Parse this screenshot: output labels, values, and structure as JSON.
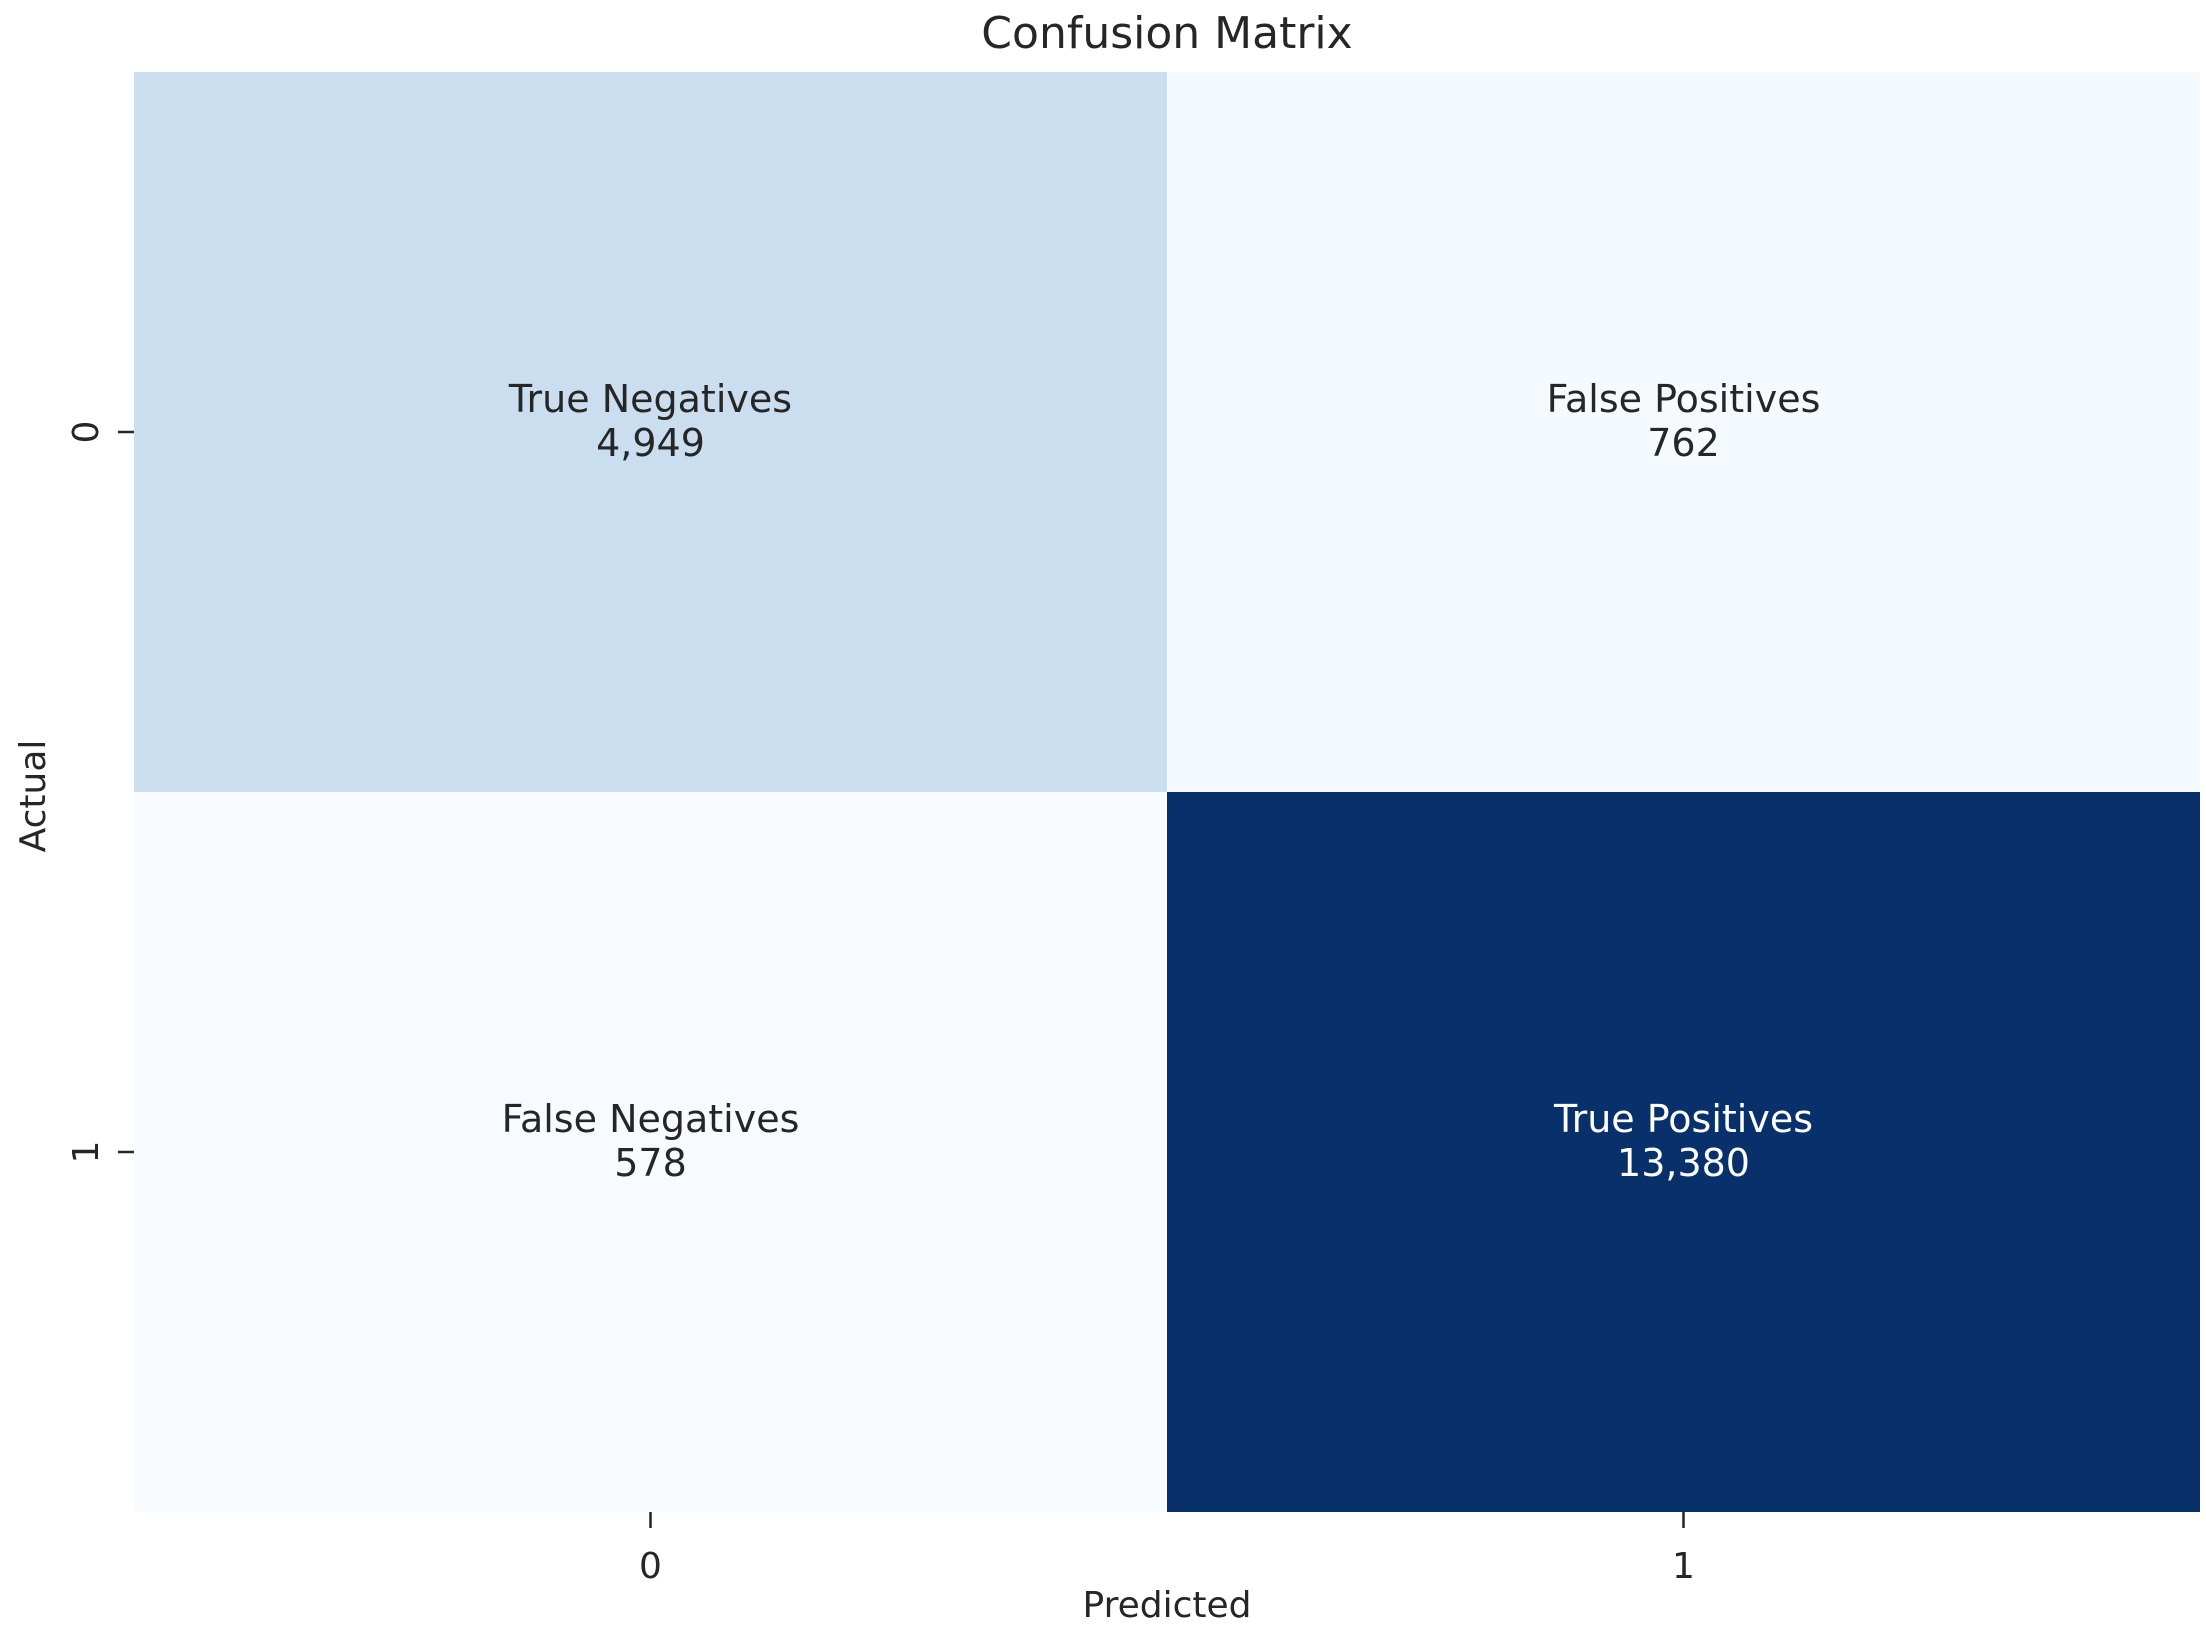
{
  "chart_data": {
    "type": "heatmap",
    "title": "Confusion Matrix",
    "xlabel": "Predicted",
    "ylabel": "Actual",
    "x_categories": [
      "0",
      "1"
    ],
    "y_categories": [
      "0",
      "1"
    ],
    "cells": [
      {
        "row": 0,
        "col": 0,
        "label": "True Negatives",
        "display": "4,949",
        "value": 4949
      },
      {
        "row": 0,
        "col": 1,
        "label": "False Positives",
        "display": "762",
        "value": 762
      },
      {
        "row": 1,
        "col": 0,
        "label": "False Negatives",
        "display": "578",
        "value": 578
      },
      {
        "row": 1,
        "col": 1,
        "label": "True Positives",
        "display": "13,380",
        "value": 13380
      }
    ],
    "colormap": "Blues",
    "colors": {
      "low": "#f7fbff",
      "mid_low": "#c6dbef",
      "mid": "#6baed6",
      "mid_high": "#2171b5",
      "high": "#08306b",
      "text_dark": "#262626",
      "text_light": "#ffffff"
    },
    "colorbar": false,
    "grid": false
  }
}
